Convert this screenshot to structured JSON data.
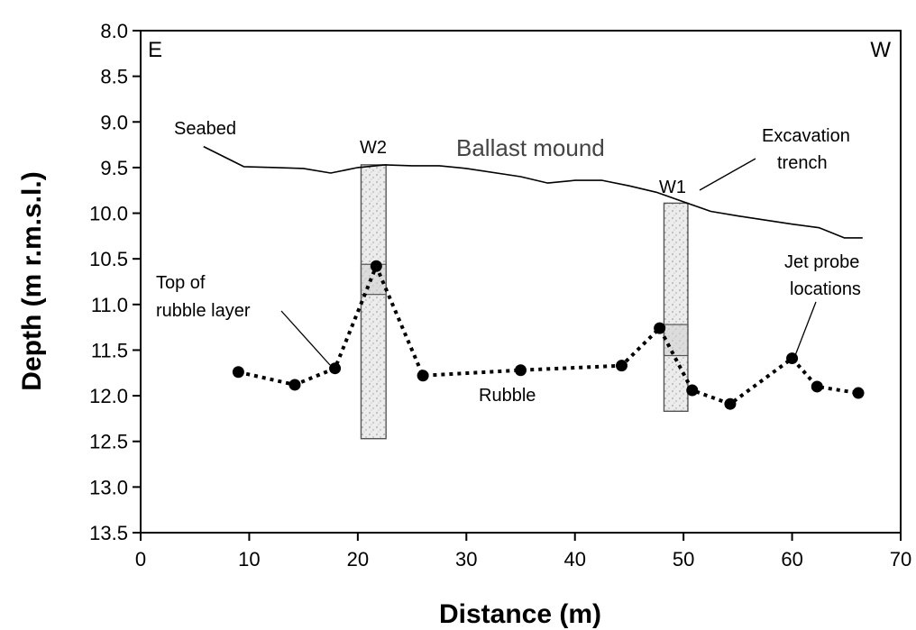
{
  "chart_data": {
    "type": "line",
    "xlabel": "Distance (m)",
    "ylabel": "Depth (m r.m.s.l.)",
    "xlim": [
      0,
      70
    ],
    "ylim": [
      8.0,
      13.5
    ],
    "y_inverted": true,
    "grid": false,
    "x_ticks": [
      "0",
      "10",
      "20",
      "30",
      "40",
      "50",
      "60",
      "70"
    ],
    "y_ticks": [
      "8.0",
      "8.5",
      "9.0",
      "9.5",
      "10.0",
      "10.5",
      "11.0",
      "11.5",
      "12.0",
      "12.5",
      "13.0",
      "13.5"
    ],
    "series": [
      {
        "name": "Seabed",
        "style": "solid-line",
        "color": "#000000",
        "points": [
          [
            5.8,
            9.27
          ],
          [
            9.5,
            9.49
          ],
          [
            12.5,
            9.5
          ],
          [
            15,
            9.51
          ],
          [
            17.5,
            9.56
          ],
          [
            20,
            9.5
          ],
          [
            22.5,
            9.47
          ],
          [
            25,
            9.48
          ],
          [
            27.5,
            9.48
          ],
          [
            30,
            9.51
          ],
          [
            35,
            9.6
          ],
          [
            37.5,
            9.67
          ],
          [
            40,
            9.64
          ],
          [
            42.5,
            9.64
          ],
          [
            45,
            9.7
          ],
          [
            47.5,
            9.77
          ],
          [
            52.5,
            9.98
          ],
          [
            55,
            10.03
          ],
          [
            60,
            10.12
          ],
          [
            62.5,
            10.16
          ],
          [
            64.8,
            10.27
          ],
          [
            66.5,
            10.27
          ]
        ]
      },
      {
        "name": "Top of rubble layer",
        "style": "dotted-line-with-markers",
        "color": "#000000",
        "points": [
          [
            9.0,
            11.74
          ],
          [
            14.2,
            11.88
          ],
          [
            17.9,
            11.7
          ],
          [
            21.7,
            10.58
          ],
          [
            26.0,
            11.78
          ],
          [
            35.0,
            11.72
          ],
          [
            44.3,
            11.67
          ],
          [
            47.8,
            11.26
          ],
          [
            50.8,
            11.94
          ],
          [
            54.3,
            12.09
          ],
          [
            60.0,
            11.59
          ],
          [
            62.3,
            11.9
          ],
          [
            66.1,
            11.97
          ]
        ]
      }
    ],
    "cores": [
      {
        "label": "W2",
        "x_start": 20.3,
        "x_end": 22.6,
        "top": 9.47,
        "bottom": 12.47,
        "band_top": 10.56,
        "band_bottom": 10.89
      },
      {
        "label": "W1",
        "x_start": 48.2,
        "x_end": 50.4,
        "top": 9.89,
        "bottom": 12.17,
        "band_top": 11.22,
        "band_bottom": 11.56
      }
    ],
    "annotations": {
      "seabed": "Seabed",
      "ballast": "Ballast mound",
      "excavation_line1": "Excavation",
      "excavation_line2": "trench",
      "top_rubble_line1": "Top of",
      "top_rubble_line2": "rubble layer",
      "rubble": "Rubble",
      "jet_line1": "Jet probe",
      "jet_line2": "locations",
      "east": "E",
      "west": "W"
    },
    "colors": {
      "core_fill": "#e6e6e6",
      "core_stroke": "#555555",
      "band_fill": "#cfcfcf",
      "marker": "#000000"
    }
  }
}
